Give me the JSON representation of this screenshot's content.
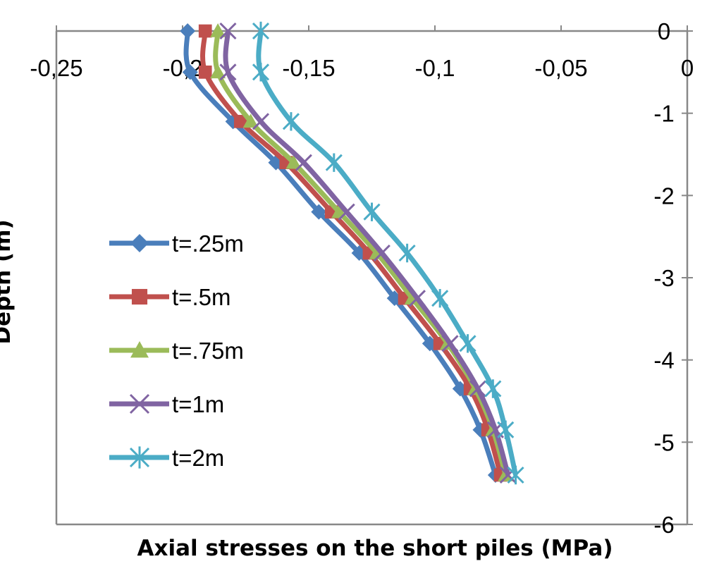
{
  "chart_data": {
    "type": "line",
    "title": "",
    "xlabel": "Axial stresses on the short piles (MPa)",
    "ylabel": "Depth (m)",
    "xlim": [
      -0.25,
      0
    ],
    "ylim": [
      -6,
      0
    ],
    "x_axis_position": "top",
    "y_axis_position": "right",
    "x_tick_labels": [
      "-0,25",
      "-0,2",
      "-0,15",
      "-0,1",
      "-0,05",
      "0"
    ],
    "y_tick_labels": [
      "0",
      "-1",
      "-2",
      "-3",
      "-4",
      "-5",
      "-6"
    ],
    "legend_position": "left",
    "grid": false,
    "depths": [
      0,
      -0.5,
      -1.1,
      -1.6,
      -2.2,
      -2.7,
      -3.25,
      -3.8,
      -4.35,
      -4.85,
      -5.4
    ],
    "series": [
      {
        "name": "t=.25m",
        "color": "#4a7ebb",
        "marker": "diamond",
        "values": [
          -0.198,
          -0.197,
          -0.18,
          -0.163,
          -0.146,
          -0.13,
          -0.116,
          -0.102,
          -0.09,
          -0.082,
          -0.076
        ]
      },
      {
        "name": "t=.5m",
        "color": "#c0504d",
        "marker": "square",
        "values": [
          -0.191,
          -0.191,
          -0.177,
          -0.159,
          -0.141,
          -0.126,
          -0.112,
          -0.098,
          -0.086,
          -0.079,
          -0.074
        ]
      },
      {
        "name": "t=.75m",
        "color": "#9bbb59",
        "marker": "triangle",
        "values": [
          -0.186,
          -0.186,
          -0.173,
          -0.156,
          -0.138,
          -0.123,
          -0.109,
          -0.095,
          -0.084,
          -0.077,
          -0.072
        ]
      },
      {
        "name": "t=1m",
        "color": "#8064a2",
        "marker": "x",
        "values": [
          -0.182,
          -0.182,
          -0.169,
          -0.152,
          -0.135,
          -0.121,
          -0.107,
          -0.094,
          -0.083,
          -0.076,
          -0.071
        ]
      },
      {
        "name": "t=2m",
        "color": "#4bacc6",
        "marker": "star",
        "values": [
          -0.169,
          -0.169,
          -0.157,
          -0.14,
          -0.125,
          -0.111,
          -0.098,
          -0.087,
          -0.077,
          -0.072,
          -0.068
        ]
      }
    ]
  }
}
